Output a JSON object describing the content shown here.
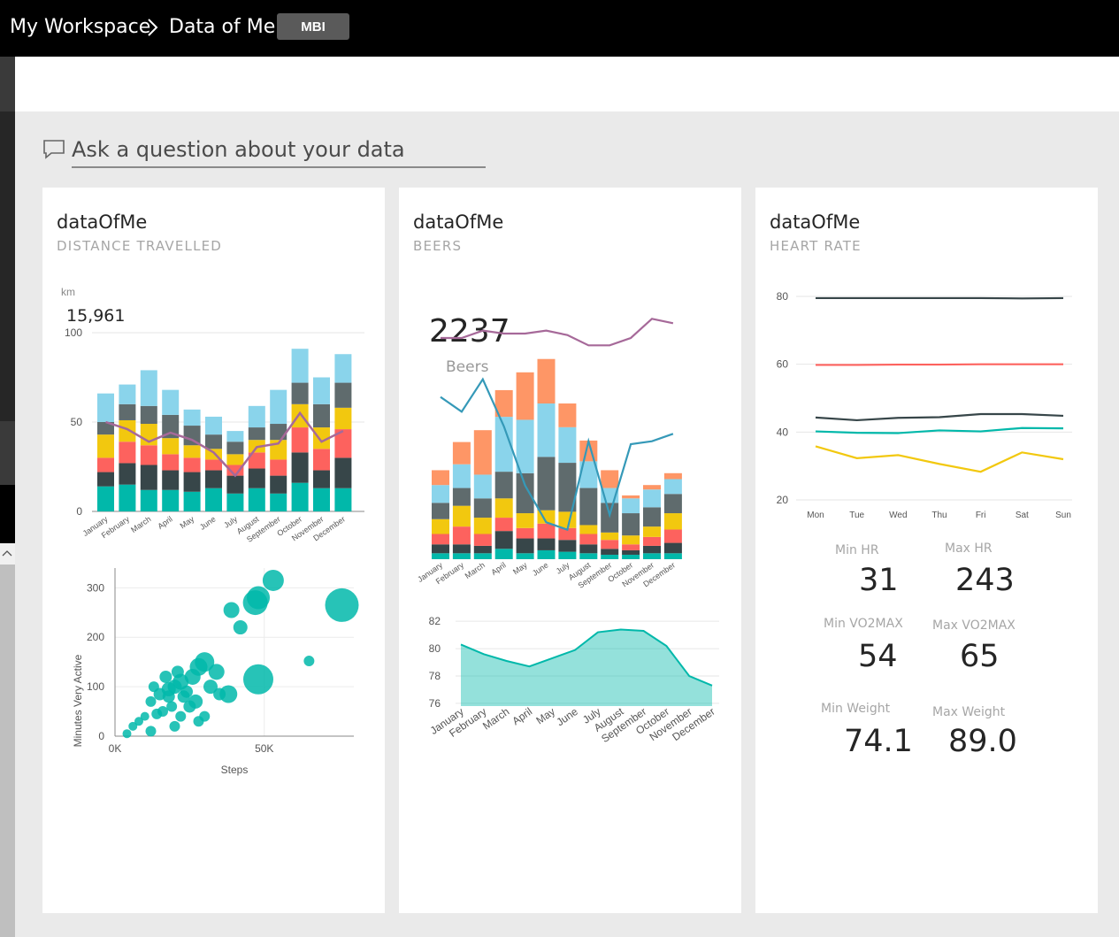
{
  "header": {
    "workspace": "My Workspace",
    "dashboard": "Data of Me",
    "badge": "MBI"
  },
  "qa": {
    "placeholder": "Ask a question about your data"
  },
  "colors": {
    "teal": "#01b8aa",
    "dark": "#374649",
    "red": "#fd625e",
    "yellow": "#f2c80f",
    "gray": "#5f6b6d",
    "skyblue": "#8ad4eb",
    "orange": "#fe9666",
    "purple": "#a66999",
    "blue": "#3599b8"
  },
  "tiles": [
    {
      "title": "dataOfMe",
      "subtitle": "DISTANCE TRAVELLED"
    },
    {
      "title": "dataOfMe",
      "subtitle": "BEERS"
    },
    {
      "title": "dataOfMe",
      "subtitle": "HEART RATE"
    }
  ],
  "months": [
    "January",
    "February",
    "March",
    "April",
    "May",
    "June",
    "July",
    "August",
    "September",
    "October",
    "November",
    "December"
  ],
  "distance": {
    "unit": "km",
    "total": "15,961",
    "yticks": [
      "100",
      "50",
      "0"
    ],
    "ylim": [
      0,
      100
    ],
    "stacks": [
      [
        14,
        8,
        8,
        13,
        7,
        16
      ],
      [
        15,
        12,
        12,
        12,
        9,
        11
      ],
      [
        12,
        14,
        11,
        12,
        10,
        20
      ],
      [
        12,
        11,
        9,
        9,
        13,
        14
      ],
      [
        11,
        11,
        8,
        7,
        11,
        9
      ],
      [
        13,
        10,
        6,
        6,
        8,
        10
      ],
      [
        10,
        10,
        6,
        6,
        7,
        6
      ],
      [
        13,
        11,
        9,
        7,
        7,
        12
      ],
      [
        10,
        10,
        9,
        11,
        9,
        19
      ],
      [
        16,
        17,
        14,
        13,
        12,
        19
      ],
      [
        13,
        10,
        12,
        12,
        13,
        15
      ],
      [
        13,
        17,
        16,
        12,
        14,
        16
      ]
    ],
    "line": [
      50,
      46,
      39,
      44,
      40,
      33,
      20,
      36,
      38,
      55,
      39,
      45
    ]
  },
  "steps": {
    "xlabel": "Steps",
    "ylabel": "Minutes Very Active",
    "xticks": [
      "0K",
      "50K"
    ],
    "yticks": [
      "300",
      "200",
      "100",
      "0"
    ],
    "xlim": [
      0,
      80000
    ],
    "ylim": [
      0,
      340
    ],
    "points": [
      [
        47000,
        270,
        14
      ],
      [
        53000,
        315,
        12
      ],
      [
        48000,
        280,
        13
      ],
      [
        76000,
        265,
        19
      ],
      [
        39000,
        255,
        9
      ],
      [
        42000,
        220,
        8
      ],
      [
        48000,
        115,
        17
      ],
      [
        38000,
        85,
        10
      ],
      [
        65000,
        152,
        6
      ],
      [
        30000,
        150,
        11
      ],
      [
        34000,
        130,
        9
      ],
      [
        28000,
        140,
        10
      ],
      [
        26000,
        120,
        9
      ],
      [
        22000,
        110,
        9
      ],
      [
        20000,
        100,
        8
      ],
      [
        18000,
        95,
        8
      ],
      [
        32000,
        100,
        8
      ],
      [
        35000,
        85,
        7
      ],
      [
        15000,
        85,
        7
      ],
      [
        12000,
        70,
        6
      ],
      [
        27000,
        70,
        8
      ],
      [
        25000,
        60,
        7
      ],
      [
        24000,
        90,
        7
      ],
      [
        19000,
        60,
        6
      ],
      [
        16000,
        50,
        6
      ],
      [
        14000,
        45,
        6
      ],
      [
        10000,
        40,
        5
      ],
      [
        8000,
        30,
        5
      ],
      [
        6000,
        20,
        5
      ],
      [
        22000,
        40,
        6
      ],
      [
        30000,
        40,
        6
      ],
      [
        28000,
        30,
        6
      ],
      [
        20000,
        20,
        6
      ],
      [
        12000,
        10,
        6
      ],
      [
        4000,
        5,
        5
      ],
      [
        18000,
        80,
        7
      ],
      [
        23000,
        80,
        7
      ],
      [
        21000,
        130,
        7
      ],
      [
        17000,
        120,
        7
      ],
      [
        13000,
        100,
        6
      ]
    ]
  },
  "beers": {
    "total": "2237",
    "label": "Beers",
    "stacks": [
      [
        4,
        6,
        7,
        10,
        11,
        12,
        10
      ],
      [
        4,
        6,
        12,
        14,
        12,
        16,
        15
      ],
      [
        4,
        5,
        8,
        11,
        13,
        16,
        30
      ],
      [
        7,
        12,
        9,
        13,
        18,
        37,
        18
      ],
      [
        4,
        10,
        7,
        10,
        27,
        36,
        32
      ],
      [
        6,
        8,
        10,
        9,
        36,
        36,
        30
      ],
      [
        5,
        8,
        8,
        11,
        33,
        24,
        16
      ],
      [
        4,
        6,
        7,
        6,
        25,
        18,
        14
      ],
      [
        3,
        4,
        6,
        5,
        20,
        10,
        12
      ],
      [
        3,
        3,
        4,
        6,
        15,
        10,
        2
      ],
      [
        4,
        5,
        6,
        7,
        13,
        12,
        3
      ],
      [
        4,
        7,
        9,
        11,
        13,
        10,
        4
      ]
    ],
    "blue_line": [
      110,
      100,
      122,
      90,
      50,
      25,
      20,
      80,
      30,
      78,
      80,
      85
    ],
    "purple_line": [
      150,
      150,
      155,
      153,
      153,
      155,
      152,
      145,
      145,
      150,
      163,
      160
    ],
    "line_max": 180,
    "bar_max": 142
  },
  "beer_area": {
    "yticks": [
      "82",
      "80",
      "78",
      "76"
    ],
    "ylim": [
      75.8,
      82.4
    ],
    "values": [
      80.3,
      79.6,
      79.1,
      78.7,
      79.3,
      79.9,
      81.2,
      81.4,
      81.3,
      80.2,
      78.0,
      77.3
    ]
  },
  "heart": {
    "days": [
      "Mon",
      "Tue",
      "Wed",
      "Thu",
      "Fri",
      "Sat",
      "Sun"
    ],
    "yticks": [
      "80",
      "60",
      "40",
      "20"
    ],
    "ylim": [
      20,
      80
    ],
    "series": [
      {
        "color": "#374649",
        "values": [
          79.5,
          79.5,
          79.5,
          79.5,
          79.5,
          79.4,
          79.5
        ]
      },
      {
        "color": "#fd625e",
        "values": [
          59.8,
          59.8,
          59.9,
          59.9,
          60.0,
          60.0,
          60.0
        ]
      },
      {
        "color": "#374649",
        "values": [
          44.3,
          43.5,
          44.2,
          44.4,
          45.3,
          45.3,
          44.8
        ]
      },
      {
        "color": "#01b8aa",
        "values": [
          40.2,
          39.8,
          39.7,
          40.5,
          40.2,
          41.2,
          41.1
        ]
      },
      {
        "color": "#f2c80f",
        "values": [
          35.8,
          32.3,
          33.2,
          30.6,
          28.3,
          34.0,
          32.0
        ]
      }
    ]
  },
  "kpis": [
    {
      "label": "Min HR",
      "value": "31"
    },
    {
      "label": "Max HR",
      "value": "243"
    },
    {
      "label": "Min VO2MAX",
      "value": "54"
    },
    {
      "label": "Max VO2MAX",
      "value": "65"
    },
    {
      "label": "Min Weight",
      "value": "74.1"
    },
    {
      "label": "Max Weight",
      "value": "89.0"
    }
  ]
}
